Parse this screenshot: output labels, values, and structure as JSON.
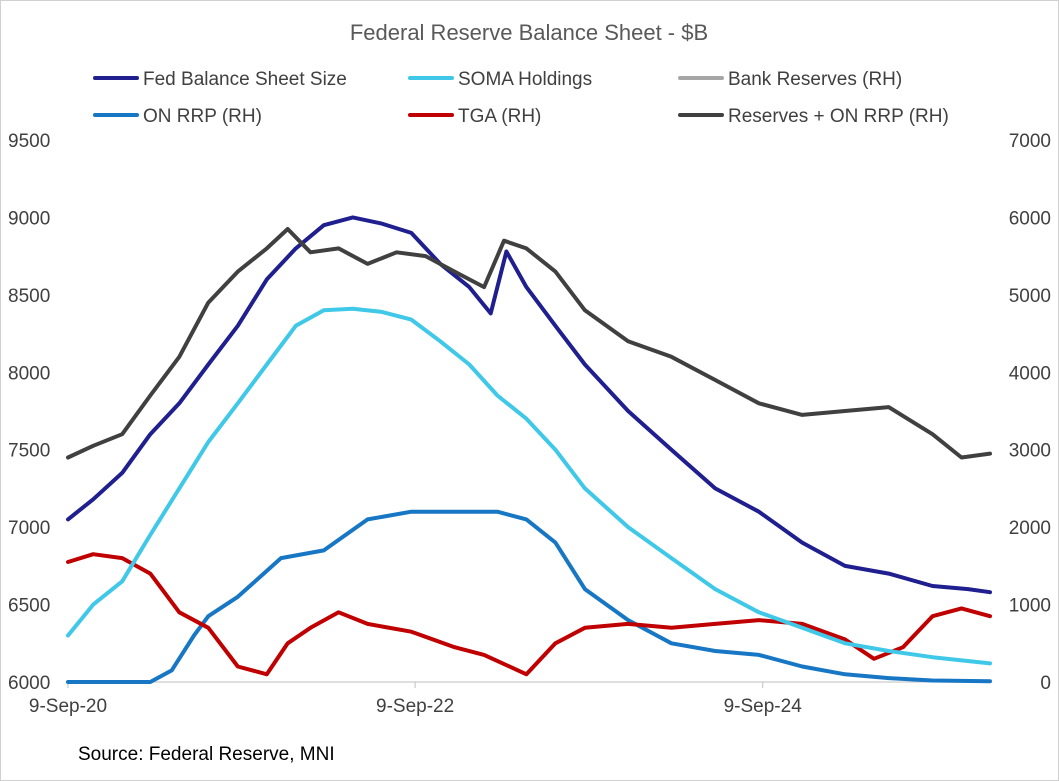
{
  "chart_data": {
    "type": "line",
    "title": "Federal Reserve Balance Sheet - $B",
    "source": "Source: Federal Reserve, MNI",
    "x_ticks": [
      "9-Sep-20",
      "9-Sep-22",
      "9-Sep-24"
    ],
    "x_range": [
      "2020-09-09",
      "2025-12-31"
    ],
    "y_left": {
      "ticks": [
        6000,
        6500,
        7000,
        7500,
        8000,
        8500,
        9000,
        9500
      ],
      "range": [
        6000,
        9500
      ]
    },
    "y_right": {
      "ticks": [
        0,
        1000,
        2000,
        3000,
        4000,
        5000,
        6000,
        7000
      ],
      "range": [
        0,
        7000
      ]
    },
    "grid": false,
    "legend_position": "top",
    "series": [
      {
        "name": "Fed Balance Sheet Size",
        "axis": "left",
        "color": "#1f1f8f",
        "points": [
          [
            "2020-09-09",
            7050
          ],
          [
            "2020-11-01",
            7180
          ],
          [
            "2021-01-01",
            7350
          ],
          [
            "2021-03-01",
            7600
          ],
          [
            "2021-05-01",
            7800
          ],
          [
            "2021-07-01",
            8050
          ],
          [
            "2021-09-01",
            8300
          ],
          [
            "2021-11-01",
            8600
          ],
          [
            "2022-01-01",
            8800
          ],
          [
            "2022-03-01",
            8950
          ],
          [
            "2022-05-01",
            9000
          ],
          [
            "2022-07-01",
            8960
          ],
          [
            "2022-09-01",
            8900
          ],
          [
            "2022-11-01",
            8700
          ],
          [
            "2023-01-01",
            8550
          ],
          [
            "2023-02-15",
            8380
          ],
          [
            "2023-03-20",
            8780
          ],
          [
            "2023-05-01",
            8550
          ],
          [
            "2023-07-01",
            8300
          ],
          [
            "2023-09-01",
            8050
          ],
          [
            "2023-12-01",
            7750
          ],
          [
            "2024-03-01",
            7500
          ],
          [
            "2024-06-01",
            7250
          ],
          [
            "2024-09-01",
            7100
          ],
          [
            "2024-12-01",
            6900
          ],
          [
            "2025-03-01",
            6750
          ],
          [
            "2025-06-01",
            6700
          ],
          [
            "2025-09-01",
            6620
          ],
          [
            "2025-11-15",
            6600
          ],
          [
            "2025-12-31",
            6580
          ]
        ]
      },
      {
        "name": "SOMA Holdings",
        "axis": "left",
        "color": "#3fc8e8",
        "points": [
          [
            "2020-09-09",
            6300
          ],
          [
            "2020-11-01",
            6500
          ],
          [
            "2021-01-01",
            6650
          ],
          [
            "2021-03-01",
            6950
          ],
          [
            "2021-05-01",
            7250
          ],
          [
            "2021-07-01",
            7550
          ],
          [
            "2021-09-01",
            7800
          ],
          [
            "2021-11-01",
            8050
          ],
          [
            "2022-01-01",
            8300
          ],
          [
            "2022-03-01",
            8400
          ],
          [
            "2022-05-01",
            8410
          ],
          [
            "2022-07-01",
            8390
          ],
          [
            "2022-09-01",
            8340
          ],
          [
            "2022-11-01",
            8200
          ],
          [
            "2023-01-01",
            8050
          ],
          [
            "2023-03-01",
            7850
          ],
          [
            "2023-05-01",
            7700
          ],
          [
            "2023-07-01",
            7500
          ],
          [
            "2023-09-01",
            7250
          ],
          [
            "2023-12-01",
            7000
          ],
          [
            "2024-03-01",
            6800
          ],
          [
            "2024-06-01",
            6600
          ],
          [
            "2024-09-01",
            6450
          ],
          [
            "2024-12-01",
            6350
          ],
          [
            "2025-03-01",
            6250
          ],
          [
            "2025-06-01",
            6200
          ],
          [
            "2025-09-01",
            6160
          ],
          [
            "2025-12-31",
            6120
          ]
        ]
      },
      {
        "name": "Bank Reserves (RH)",
        "axis": "right",
        "color": "#a6a6a6",
        "points": [
          [
            "2020-09-09",
            null
          ]
        ]
      },
      {
        "name": "ON RRP (RH)",
        "axis": "right",
        "color": "#1777c4",
        "points": [
          [
            "2020-09-09",
            0
          ],
          [
            "2021-03-01",
            0
          ],
          [
            "2021-04-15",
            150
          ],
          [
            "2021-06-01",
            600
          ],
          [
            "2021-07-01",
            850
          ],
          [
            "2021-09-01",
            1100
          ],
          [
            "2021-12-01",
            1600
          ],
          [
            "2022-03-01",
            1700
          ],
          [
            "2022-06-01",
            2100
          ],
          [
            "2022-09-01",
            2200
          ],
          [
            "2022-12-01",
            2200
          ],
          [
            "2023-03-01",
            2200
          ],
          [
            "2023-05-01",
            2100
          ],
          [
            "2023-07-01",
            1800
          ],
          [
            "2023-09-01",
            1200
          ],
          [
            "2023-12-01",
            800
          ],
          [
            "2024-03-01",
            500
          ],
          [
            "2024-06-01",
            400
          ],
          [
            "2024-09-01",
            350
          ],
          [
            "2024-12-01",
            200
          ],
          [
            "2025-03-01",
            100
          ],
          [
            "2025-06-01",
            50
          ],
          [
            "2025-09-01",
            20
          ],
          [
            "2025-12-31",
            10
          ]
        ]
      },
      {
        "name": "TGA (RH)",
        "axis": "right",
        "color": "#c00000",
        "points": [
          [
            "2020-09-09",
            1550
          ],
          [
            "2020-11-01",
            1650
          ],
          [
            "2021-01-01",
            1600
          ],
          [
            "2021-03-01",
            1400
          ],
          [
            "2021-05-01",
            900
          ],
          [
            "2021-07-01",
            700
          ],
          [
            "2021-09-01",
            200
          ],
          [
            "2021-11-01",
            100
          ],
          [
            "2021-12-15",
            500
          ],
          [
            "2022-02-01",
            700
          ],
          [
            "2022-04-01",
            900
          ],
          [
            "2022-06-01",
            750
          ],
          [
            "2022-09-01",
            650
          ],
          [
            "2022-12-01",
            450
          ],
          [
            "2023-02-01",
            350
          ],
          [
            "2023-05-01",
            100
          ],
          [
            "2023-07-01",
            500
          ],
          [
            "2023-09-01",
            700
          ],
          [
            "2023-12-01",
            750
          ],
          [
            "2024-03-01",
            700
          ],
          [
            "2024-06-01",
            750
          ],
          [
            "2024-09-01",
            800
          ],
          [
            "2024-12-01",
            750
          ],
          [
            "2025-03-01",
            550
          ],
          [
            "2025-05-01",
            300
          ],
          [
            "2025-07-01",
            450
          ],
          [
            "2025-09-01",
            850
          ],
          [
            "2025-11-01",
            950
          ],
          [
            "2025-12-31",
            850
          ]
        ]
      },
      {
        "name": "Reserves + ON RRP (RH)",
        "axis": "right",
        "color": "#404040",
        "points": [
          [
            "2020-09-09",
            2900
          ],
          [
            "2020-11-01",
            3050
          ],
          [
            "2021-01-01",
            3200
          ],
          [
            "2021-03-01",
            3700
          ],
          [
            "2021-05-01",
            4200
          ],
          [
            "2021-07-01",
            4900
          ],
          [
            "2021-09-01",
            5300
          ],
          [
            "2021-11-01",
            5600
          ],
          [
            "2021-12-15",
            5850
          ],
          [
            "2022-02-01",
            5550
          ],
          [
            "2022-04-01",
            5600
          ],
          [
            "2022-06-01",
            5400
          ],
          [
            "2022-08-01",
            5550
          ],
          [
            "2022-10-01",
            5500
          ],
          [
            "2022-12-01",
            5300
          ],
          [
            "2023-02-01",
            5100
          ],
          [
            "2023-03-15",
            5700
          ],
          [
            "2023-05-01",
            5600
          ],
          [
            "2023-07-01",
            5300
          ],
          [
            "2023-09-01",
            4800
          ],
          [
            "2023-12-01",
            4400
          ],
          [
            "2024-03-01",
            4200
          ],
          [
            "2024-06-01",
            3900
          ],
          [
            "2024-09-01",
            3600
          ],
          [
            "2024-12-01",
            3450
          ],
          [
            "2025-03-01",
            3500
          ],
          [
            "2025-06-01",
            3550
          ],
          [
            "2025-09-01",
            3200
          ],
          [
            "2025-11-01",
            2900
          ],
          [
            "2025-12-31",
            2950
          ]
        ]
      }
    ]
  }
}
